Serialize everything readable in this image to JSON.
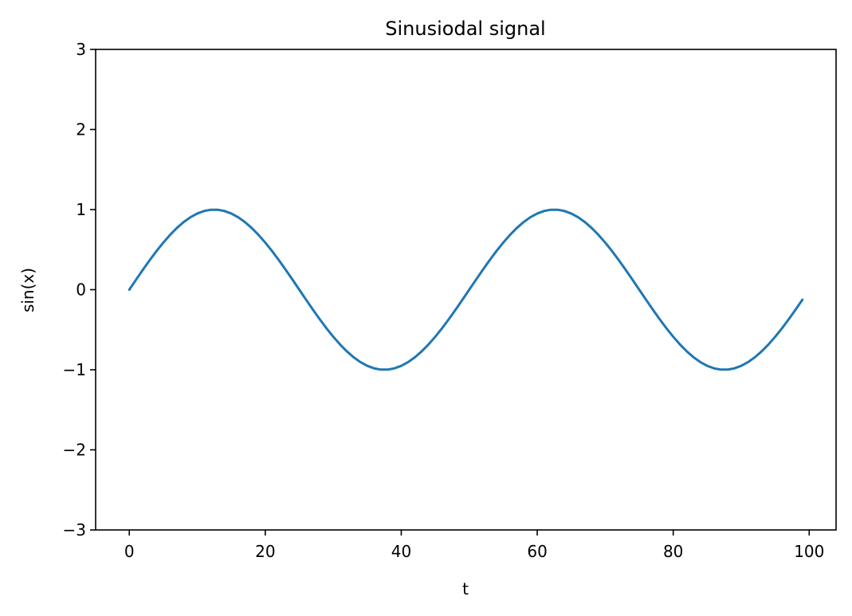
{
  "chart_data": {
    "type": "line",
    "title": "Sinusiodal signal",
    "xlabel": "t",
    "ylabel": "sin(x)",
    "xlim": [
      -4.95,
      103.95
    ],
    "ylim": [
      -3,
      3
    ],
    "x_ticks": [
      0,
      20,
      40,
      60,
      80,
      100
    ],
    "y_ticks": [
      -3,
      -2,
      -1,
      0,
      1,
      2,
      3
    ],
    "x_tick_labels": [
      "0",
      "20",
      "40",
      "60",
      "80",
      "100"
    ],
    "y_tick_labels": [
      "−3",
      "−2",
      "−1",
      "0",
      "1",
      "2",
      "3"
    ],
    "grid": false,
    "line_color": "#1f77b4",
    "series": [
      {
        "function": "sin(2*pi*t/50)",
        "x": [
          0,
          1,
          2,
          3,
          4,
          5,
          6,
          7,
          8,
          9,
          10,
          11,
          12,
          13,
          14,
          15,
          16,
          17,
          18,
          19,
          20,
          21,
          22,
          23,
          24,
          25,
          26,
          27,
          28,
          29,
          30,
          31,
          32,
          33,
          34,
          35,
          36,
          37,
          38,
          39,
          40,
          41,
          42,
          43,
          44,
          45,
          46,
          47,
          48,
          49,
          50,
          51,
          52,
          53,
          54,
          55,
          56,
          57,
          58,
          59,
          60,
          61,
          62,
          63,
          64,
          65,
          66,
          67,
          68,
          69,
          70,
          71,
          72,
          73,
          74,
          75,
          76,
          77,
          78,
          79,
          80,
          81,
          82,
          83,
          84,
          85,
          86,
          87,
          88,
          89,
          90,
          91,
          92,
          93,
          94,
          95,
          96,
          97,
          98,
          99
        ],
        "y": [
          0.0,
          0.1253,
          0.2487,
          0.3681,
          0.4818,
          0.5878,
          0.6845,
          0.7705,
          0.8443,
          0.9048,
          0.9511,
          0.9823,
          0.998,
          0.998,
          0.9823,
          0.9511,
          0.9048,
          0.8443,
          0.7705,
          0.6845,
          0.5878,
          0.4818,
          0.3681,
          0.2487,
          0.1253,
          0.0,
          -0.1253,
          -0.2487,
          -0.3681,
          -0.4818,
          -0.5878,
          -0.6845,
          -0.7705,
          -0.8443,
          -0.9048,
          -0.9511,
          -0.9823,
          -0.998,
          -0.998,
          -0.9823,
          -0.9511,
          -0.9048,
          -0.8443,
          -0.7705,
          -0.6845,
          -0.5878,
          -0.4818,
          -0.3681,
          -0.2487,
          -0.1253,
          0.0,
          0.1253,
          0.2487,
          0.3681,
          0.4818,
          0.5878,
          0.6845,
          0.7705,
          0.8443,
          0.9048,
          0.9511,
          0.9823,
          0.998,
          0.998,
          0.9823,
          0.9511,
          0.9048,
          0.8443,
          0.7705,
          0.6845,
          0.5878,
          0.4818,
          0.3681,
          0.2487,
          0.1253,
          0.0,
          -0.1253,
          -0.2487,
          -0.3681,
          -0.4818,
          -0.5878,
          -0.6845,
          -0.7705,
          -0.8443,
          -0.9048,
          -0.9511,
          -0.9823,
          -0.998,
          -0.998,
          -0.9823,
          -0.9511,
          -0.9048,
          -0.8443,
          -0.7705,
          -0.6845,
          -0.5878,
          -0.4818,
          -0.3681,
          -0.2487,
          -0.1253
        ]
      }
    ]
  }
}
